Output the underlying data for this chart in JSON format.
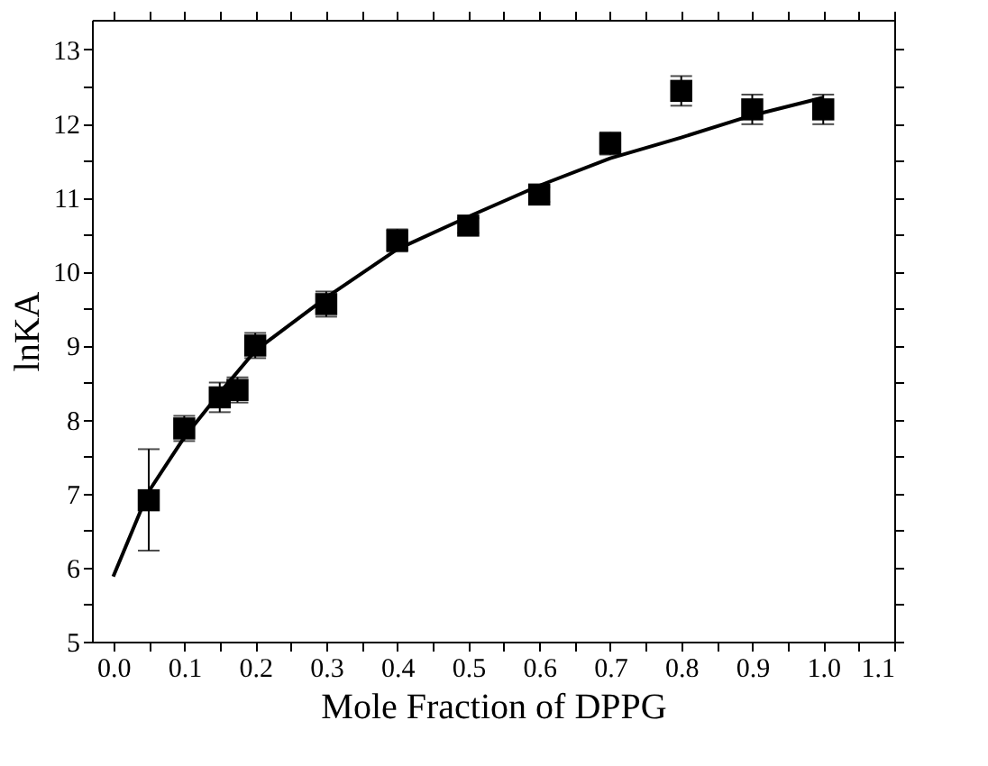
{
  "chart_data": {
    "type": "scatter",
    "xlabel": "Mole Fraction of DPPG",
    "ylabel": "lnKA",
    "xlim": [
      -0.03,
      1.1
    ],
    "ylim": [
      5,
      13.4
    ],
    "xticks": [
      {
        "value": 0.0,
        "label": "0.0"
      },
      {
        "value": 0.05,
        "label": null
      },
      0.1,
      {
        "value": 0.15,
        "label": null
      },
      0.2,
      {
        "value": 0.25,
        "label": null
      },
      0.3,
      {
        "value": 0.35,
        "label": null
      },
      0.4,
      {
        "value": 0.45,
        "label": null
      },
      0.5,
      {
        "value": 0.55,
        "label": null
      },
      0.6,
      {
        "value": 0.65,
        "label": null
      },
      0.7,
      {
        "value": 0.75,
        "label": null
      },
      0.8,
      {
        "value": 0.85,
        "label": null
      },
      0.9,
      {
        "value": 0.95,
        "label": null
      },
      {
        "value": 1.0,
        "label": "1.0"
      },
      {
        "value": 1.05,
        "label": null
      },
      1.1
    ],
    "yticks": [
      5,
      {
        "value": 5.5,
        "label": null
      },
      6,
      {
        "value": 6.5,
        "label": null
      },
      7,
      {
        "value": 7.5,
        "label": null
      },
      8,
      {
        "value": 8.5,
        "label": null
      },
      9,
      {
        "value": 9.5,
        "label": null
      },
      10,
      {
        "value": 10.5,
        "label": null
      },
      11,
      {
        "value": 11.5,
        "label": null
      },
      12,
      {
        "value": 12.5,
        "label": null
      },
      13
    ],
    "grid": false,
    "series": [
      {
        "marker": "square",
        "color": "#000000",
        "x": [
          0.05,
          0.1,
          0.15,
          0.175,
          0.2,
          0.3,
          0.4,
          0.5,
          0.6,
          0.7,
          0.8,
          0.9,
          1.0
        ],
        "values": [
          6.91,
          7.88,
          8.3,
          8.4,
          9.0,
          9.56,
          10.42,
          10.62,
          11.04,
          11.73,
          12.44,
          12.19,
          12.19
        ],
        "errors": [
          [
            6.23,
            7.6
          ],
          0.17,
          0.2,
          0.17,
          0.17,
          0.17,
          0.15,
          0.1,
          0.1,
          0.15,
          0.2,
          0.2,
          0.2
        ]
      },
      {
        "type": "line",
        "line_style": "solid",
        "color": "#000000",
        "x": [
          0.0,
          0.05,
          0.1,
          0.15,
          0.2,
          0.3,
          0.4,
          0.5,
          0.6,
          0.7,
          0.8,
          0.9,
          1.0
        ],
        "values": [
          5.88,
          7.03,
          7.76,
          8.36,
          8.93,
          9.65,
          10.3,
          10.74,
          11.16,
          11.53,
          11.81,
          12.11,
          12.35
        ]
      }
    ]
  }
}
